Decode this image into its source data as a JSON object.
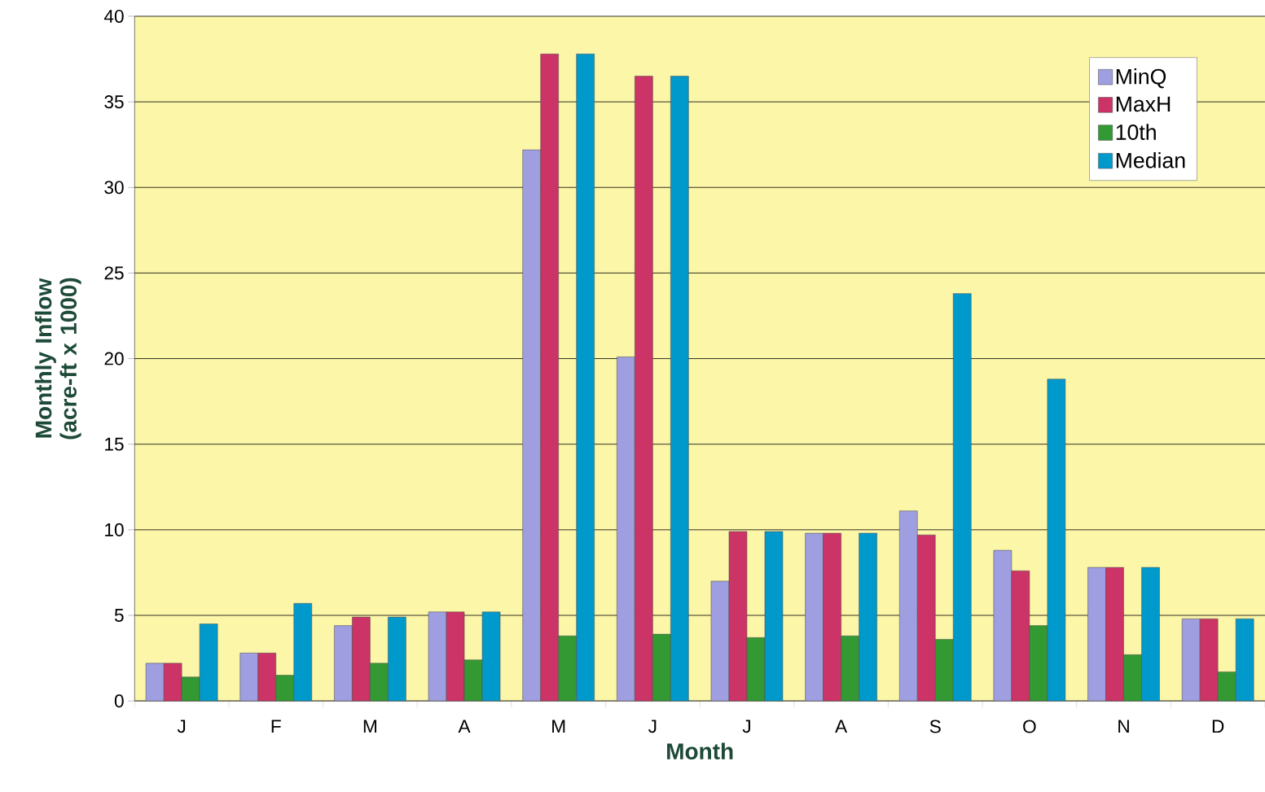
{
  "chart_data": {
    "type": "bar",
    "xlabel": "Month",
    "ylabel": "Monthly Inflow (acre-ft x 1000)",
    "categories": [
      "J",
      "F",
      "M",
      "A",
      "M",
      "J",
      "J",
      "A",
      "S",
      "O",
      "N",
      "D"
    ],
    "series": [
      {
        "name": "MinQ",
        "color": "#9e9ee0",
        "values": [
          2.2,
          2.8,
          4.4,
          5.2,
          32.2,
          20.1,
          7.0,
          9.8,
          11.1,
          8.8,
          7.8,
          4.8
        ]
      },
      {
        "name": "MaxH",
        "color": "#cc3366",
        "values": [
          2.2,
          2.8,
          4.9,
          5.2,
          37.8,
          36.5,
          9.9,
          9.8,
          9.7,
          7.6,
          7.8,
          4.8
        ]
      },
      {
        "name": "10th",
        "color": "#339933",
        "values": [
          1.4,
          1.5,
          2.2,
          2.4,
          3.8,
          3.9,
          3.7,
          3.8,
          3.6,
          4.4,
          2.7,
          1.7
        ]
      },
      {
        "name": "Median",
        "color": "#0099cc",
        "values": [
          4.5,
          5.7,
          4.9,
          5.2,
          37.8,
          36.5,
          9.9,
          9.8,
          23.8,
          18.8,
          7.8,
          4.8
        ]
      }
    ],
    "ylim": [
      0,
      40
    ],
    "yticks": [
      0,
      5,
      10,
      15,
      20,
      25,
      30,
      35,
      40
    ],
    "grid": "y",
    "legend": "top right"
  }
}
